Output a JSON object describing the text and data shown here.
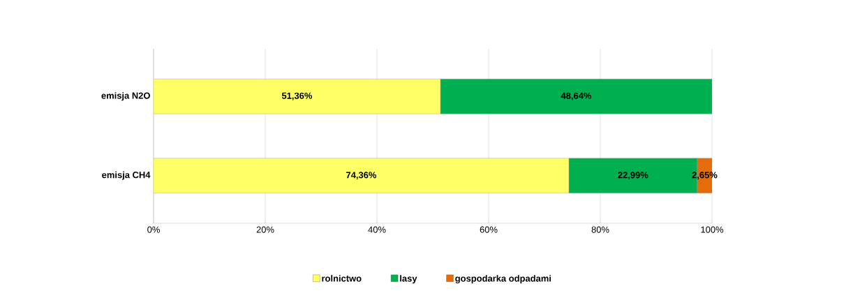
{
  "chart_data": {
    "type": "bar",
    "orientation": "horizontal",
    "stacked": true,
    "categories": [
      "emisja N2O",
      "emisja CH4"
    ],
    "series": [
      {
        "name": "rolnictwo",
        "color": "#ffff66",
        "values": [
          51.36,
          74.36
        ],
        "value_labels": [
          "51,36%",
          "74,36%"
        ]
      },
      {
        "name": "lasy",
        "color": "#00b050",
        "values": [
          48.64,
          22.99
        ],
        "value_labels": [
          "48,64%",
          "22,99%"
        ]
      },
      {
        "name": "gospodarka odpadami",
        "color": "#e46c0a",
        "values": [
          0,
          2.65
        ],
        "value_labels": [
          null,
          "2,65%"
        ]
      }
    ],
    "xlim": [
      0,
      100
    ],
    "xticks": [
      {
        "value": 0,
        "label": "0%"
      },
      {
        "value": 20,
        "label": "20%"
      },
      {
        "value": 40,
        "label": "40%"
      },
      {
        "value": 60,
        "label": "60%"
      },
      {
        "value": 80,
        "label": "80%"
      },
      {
        "value": 100,
        "label": "100%"
      }
    ],
    "grid": "x",
    "legend": "bottom"
  }
}
